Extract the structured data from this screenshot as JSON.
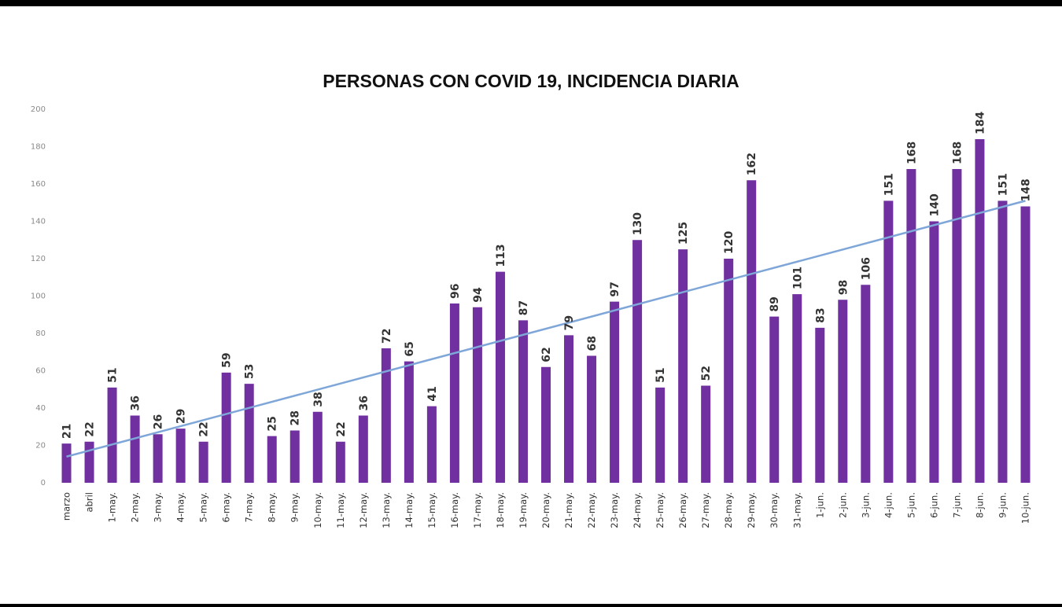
{
  "chart_data": {
    "type": "bar",
    "title": "PERSONAS CON COVID 19, INCIDENCIA DIARIA",
    "xlabel": "",
    "ylabel": "",
    "ylim": [
      0,
      200
    ],
    "yticks": [
      0,
      20,
      40,
      60,
      80,
      100,
      120,
      140,
      160,
      180,
      200
    ],
    "grid": false,
    "trendline": {
      "type": "linear",
      "start_value": 14,
      "end_value": 151
    },
    "colors": {
      "bar": "#7030a0",
      "trend": "#7ea6d8"
    },
    "categories": [
      "marzo",
      "abril",
      "1-may.",
      "2-may.",
      "3-may.",
      "4-may.",
      "5-may.",
      "6-may.",
      "7-may.",
      "8-may.",
      "9-may.",
      "10-may.",
      "11-may.",
      "12-may.",
      "13-may.",
      "14-may.",
      "15-may.",
      "16-may.",
      "17-may.",
      "18-may.",
      "19-may.",
      "20-may.",
      "21-may.",
      "22-may.",
      "23-may.",
      "24-may.",
      "25-may.",
      "26-may.",
      "27-may.",
      "28-may.",
      "29-may.",
      "30-may.",
      "31-may.",
      "1-jun.",
      "2-jun.",
      "3-jun.",
      "4-jun.",
      "5-jun.",
      "6-jun.",
      "7-jun.",
      "8-jun.",
      "9-jun.",
      "10-jun."
    ],
    "values": [
      21,
      22,
      51,
      36,
      26,
      29,
      22,
      59,
      53,
      25,
      28,
      38,
      22,
      36,
      72,
      65,
      41,
      96,
      94,
      113,
      87,
      62,
      79,
      68,
      97,
      130,
      51,
      125,
      52,
      120,
      162,
      89,
      101,
      83,
      98,
      106,
      151,
      168,
      140,
      168,
      184,
      151,
      148
    ]
  }
}
